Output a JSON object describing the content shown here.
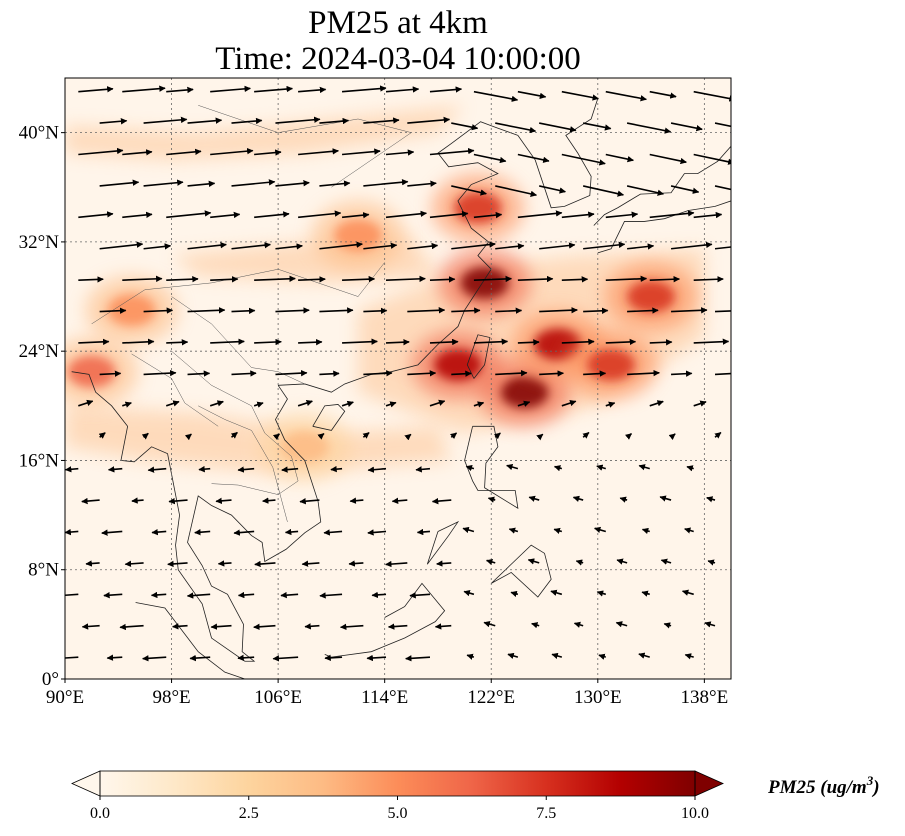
{
  "title": {
    "line1": "PM25 at 4km",
    "line2": "Time: 2024-03-04 10:00:00"
  },
  "map": {
    "projection": "PlateCarree",
    "lon_range": [
      90,
      140
    ],
    "lat_range": [
      0,
      44
    ],
    "lon_ticks": [
      90,
      98,
      106,
      114,
      122,
      130,
      138
    ],
    "lat_ticks": [
      0,
      8,
      16,
      24,
      32,
      40
    ],
    "lon_tick_labels": [
      "90°E",
      "98°E",
      "106°E",
      "114°E",
      "122°E",
      "130°E",
      "138°E"
    ],
    "lat_tick_labels": [
      "0°",
      "8°N",
      "16°N",
      "24°N",
      "32°N",
      "40°N"
    ],
    "gridlines": true,
    "field": "PM25 concentration",
    "hotspots": [
      {
        "lon": 121.5,
        "lat": 29.0,
        "value": 9.5
      },
      {
        "lon": 124.5,
        "lat": 21.0,
        "value": 10.0
      },
      {
        "lon": 119.5,
        "lat": 23.0,
        "value": 9.0
      },
      {
        "lon": 127.0,
        "lat": 24.5,
        "value": 8.5
      },
      {
        "lon": 134.0,
        "lat": 28.0,
        "value": 7.5
      },
      {
        "lon": 121.0,
        "lat": 34.5,
        "value": 7.0
      },
      {
        "lon": 131.0,
        "lat": 23.0,
        "value": 7.0
      },
      {
        "lon": 92.0,
        "lat": 22.5,
        "value": 6.5
      },
      {
        "lon": 95.0,
        "lat": 27.0,
        "value": 5.0
      },
      {
        "lon": 112.0,
        "lat": 32.5,
        "value": 5.0
      },
      {
        "lon": 108.0,
        "lat": 17.0,
        "value": 4.0
      }
    ],
    "wind_arrows": "quiver vectors showing wind direction over the domain"
  },
  "colorbar": {
    "colormap": "OrRd",
    "min": 0.0,
    "max": 10.0,
    "extend": "both",
    "tick_values": [
      0.0,
      2.5,
      5.0,
      7.5,
      10.0
    ],
    "tick_labels": [
      "0.0",
      "2.5",
      "5.0",
      "7.5",
      "10.0"
    ],
    "label": "PM25 (ug/m",
    "label_exponent": "3",
    "label_close": ")",
    "colors": [
      "#fff7ec",
      "#fee8c8",
      "#fdd49e",
      "#fdbb84",
      "#fc8d59",
      "#ef6548",
      "#d7301f",
      "#b30000",
      "#7f0000"
    ]
  }
}
